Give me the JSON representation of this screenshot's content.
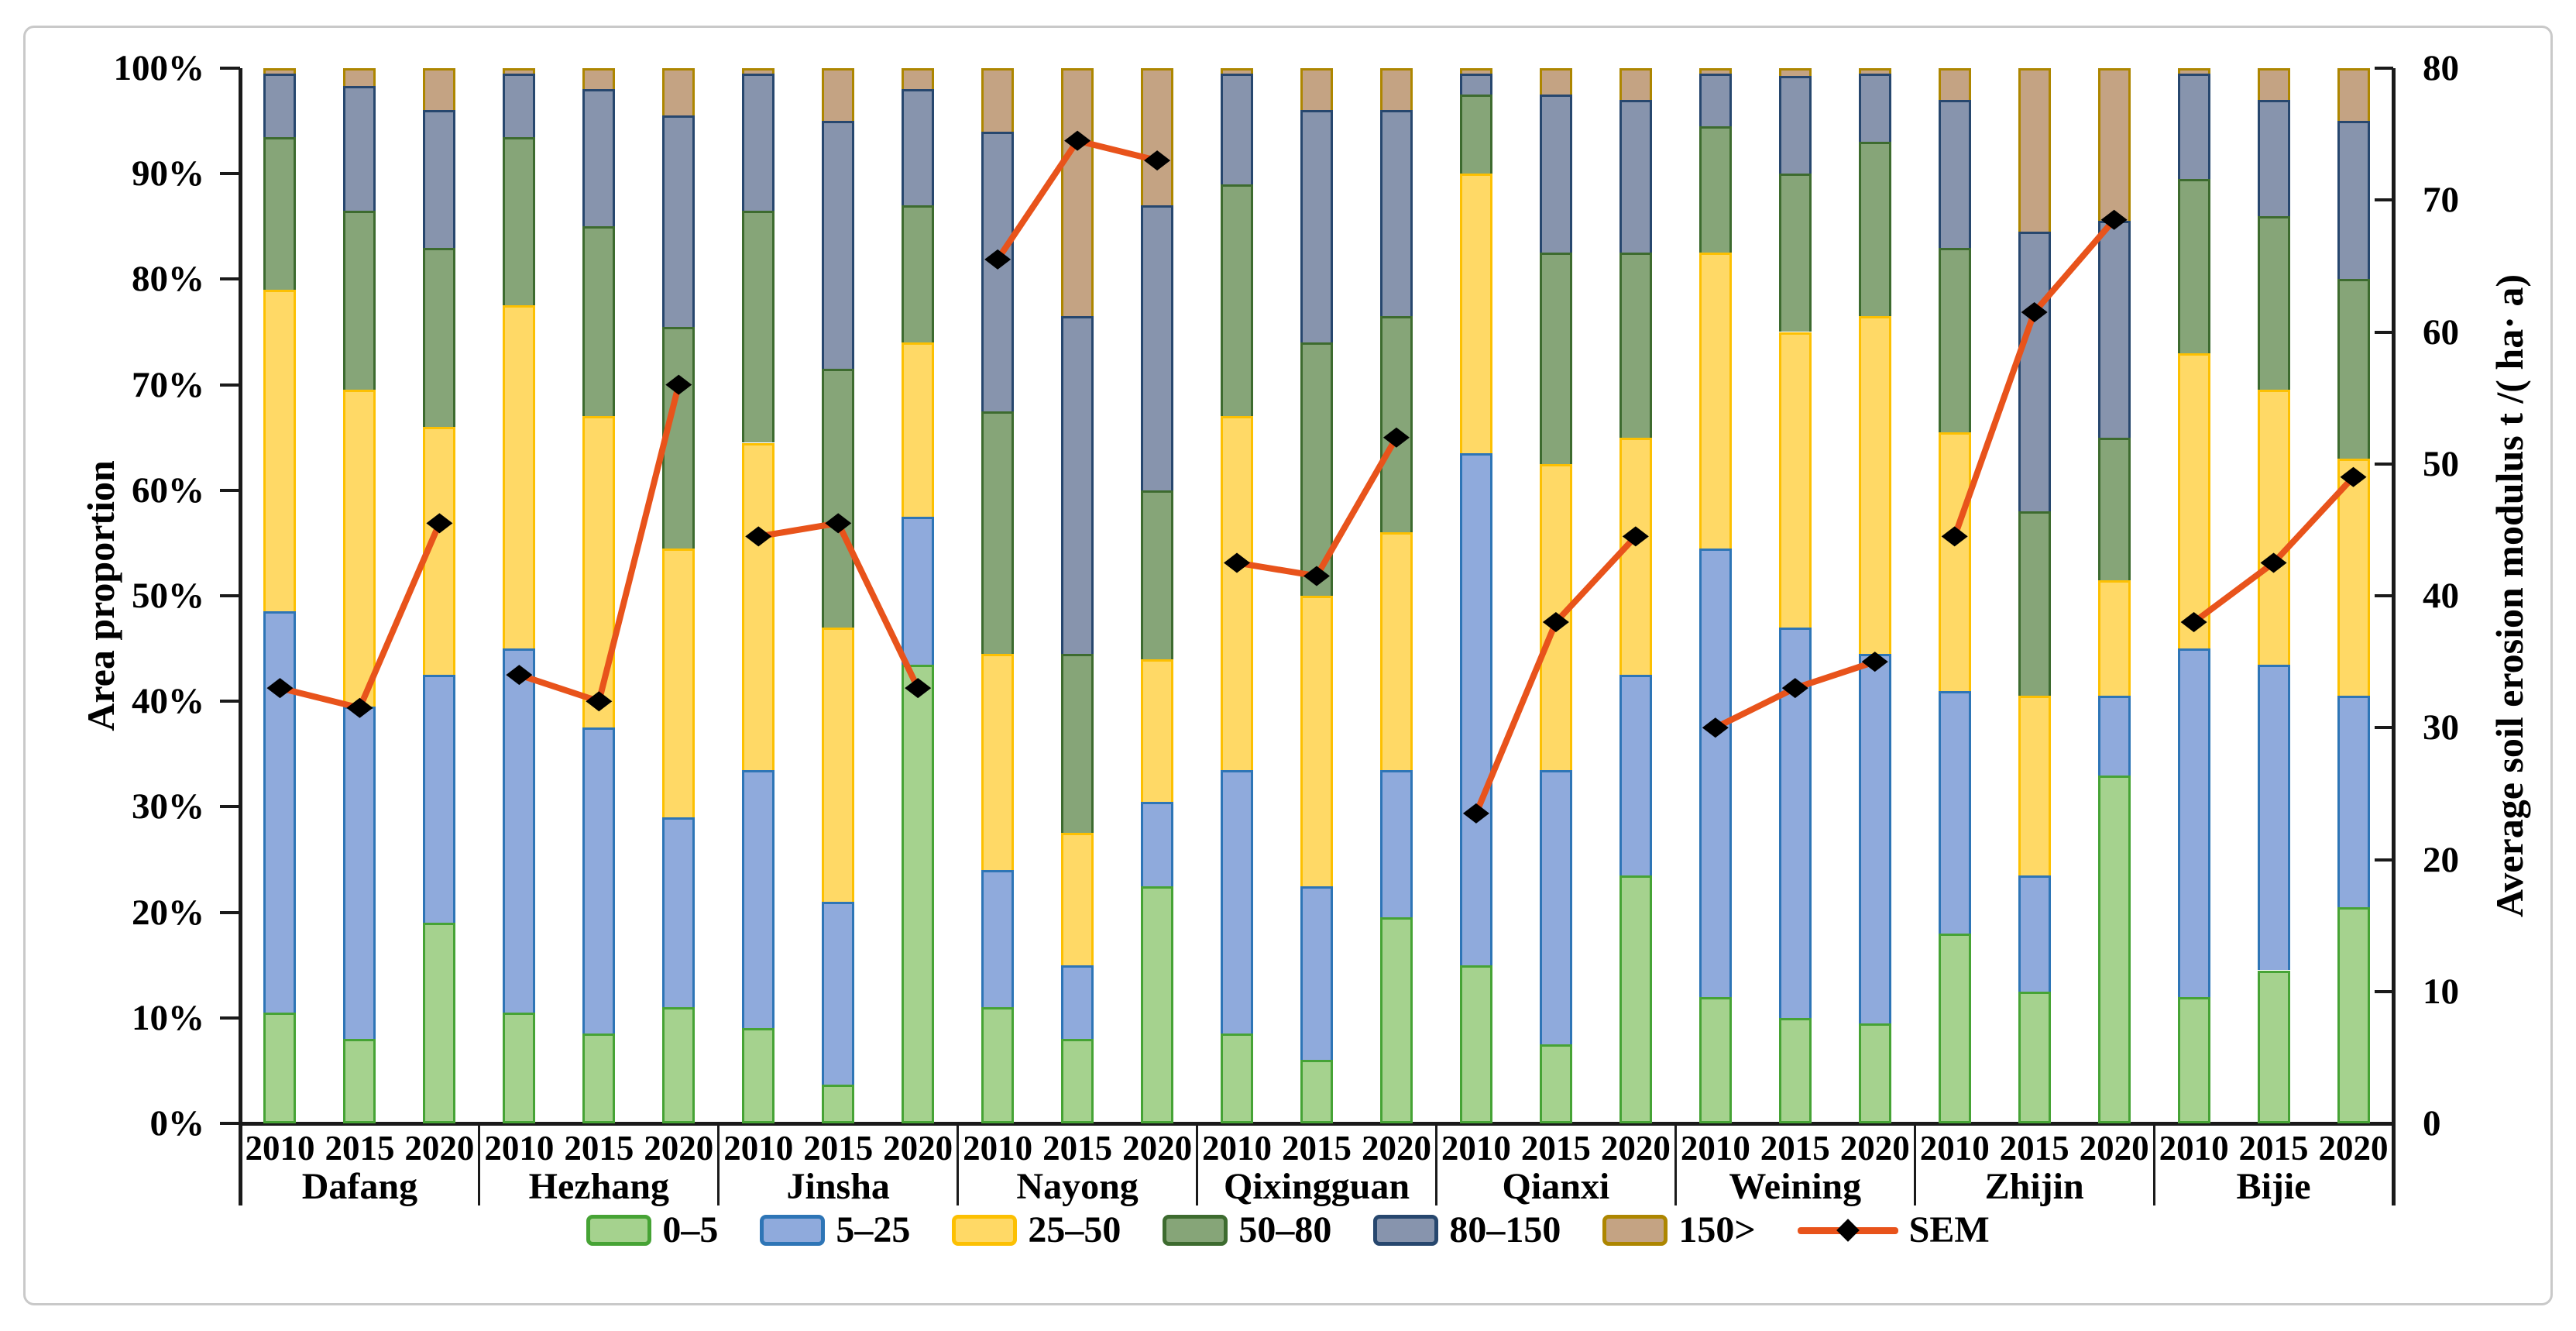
{
  "figure": {
    "background": "#ffffff",
    "frame_color": "#c9c9c9"
  },
  "chart_data": {
    "type": "bar",
    "variant": "100%-stacked-bars-with-line-overlay",
    "title": "",
    "grid": false,
    "legend_position": "bottom",
    "left_axis": {
      "title": "Area proportion",
      "min": 0,
      "max": 100,
      "tick_labels": [
        "0%",
        "10%",
        "20%",
        "30%",
        "40%",
        "50%",
        "60%",
        "70%",
        "80%",
        "90%",
        "100%"
      ]
    },
    "right_axis": {
      "title": "Average soil erosion modulus t /( ha· a)",
      "min": 0,
      "max": 80,
      "tick_labels": [
        "0",
        "10",
        "20",
        "30",
        "40",
        "50",
        "60",
        "70",
        "80"
      ]
    },
    "series_labels": [
      "0–5",
      "5–25",
      "25–50",
      "50–80",
      "80–150",
      "150>"
    ],
    "sem_label": "SEM",
    "years": [
      "2010",
      "2015",
      "2020"
    ],
    "colors": {
      "categories": [
        {
          "label": "0–5",
          "fill": "#a5d28e",
          "border": "#46a335"
        },
        {
          "label": "5–25",
          "fill": "#8faadc",
          "border": "#2e75b6"
        },
        {
          "label": "25–50",
          "fill": "#ffd966",
          "border": "#fcc002"
        },
        {
          "label": "50–80",
          "fill": "#86a578",
          "border": "#3d6b2f"
        },
        {
          "label": "80–150",
          "fill": "#8794ad",
          "border": "#27476e"
        },
        {
          "label": "150>",
          "fill": "#c4a383",
          "border": "#ad8600"
        }
      ],
      "sem_line": "#e8531b",
      "sem_marker": "#000000",
      "axis": "#1a1a1a"
    },
    "regions": [
      {
        "name": "Dafang",
        "bars": [
          {
            "year": "2010",
            "values": [
              10.5,
              38.0,
              30.5,
              14.5,
              6.0,
              0.5
            ],
            "sem": 33.0
          },
          {
            "year": "2015",
            "values": [
              8.0,
              31.5,
              30.0,
              17.0,
              11.8,
              1.7
            ],
            "sem": 31.5
          },
          {
            "year": "2020",
            "values": [
              19.0,
              23.5,
              23.5,
              17.0,
              13.0,
              4.0
            ],
            "sem": 45.5
          }
        ]
      },
      {
        "name": "Hezhang",
        "bars": [
          {
            "year": "2010",
            "values": [
              10.5,
              34.5,
              32.5,
              16.0,
              6.0,
              0.5
            ],
            "sem": 34.0
          },
          {
            "year": "2015",
            "values": [
              8.5,
              29.0,
              29.5,
              18.0,
              13.0,
              2.0
            ],
            "sem": 32.0
          },
          {
            "year": "2020",
            "values": [
              11.0,
              18.0,
              25.5,
              21.0,
              20.0,
              4.5
            ],
            "sem": 56.0
          }
        ]
      },
      {
        "name": "Jinsha",
        "bars": [
          {
            "year": "2010",
            "values": [
              9.0,
              24.5,
              31.0,
              22.0,
              13.0,
              0.5
            ],
            "sem": 44.5
          },
          {
            "year": "2015",
            "values": [
              3.7,
              17.3,
              26.0,
              24.5,
              23.5,
              5.0
            ],
            "sem": 45.5
          },
          {
            "year": "2020",
            "values": [
              43.5,
              14.0,
              16.5,
              13.0,
              11.0,
              2.0
            ],
            "sem": 33.0
          }
        ]
      },
      {
        "name": "Nayong",
        "bars": [
          {
            "year": "2010",
            "values": [
              11.0,
              13.0,
              20.5,
              23.0,
              26.5,
              6.0
            ],
            "sem": 65.5
          },
          {
            "year": "2015",
            "values": [
              8.0,
              7.0,
              12.5,
              17.0,
              32.0,
              23.5
            ],
            "sem": 74.5
          },
          {
            "year": "2020",
            "values": [
              22.5,
              8.0,
              13.5,
              16.0,
              27.0,
              13.0
            ],
            "sem": 73.0
          }
        ]
      },
      {
        "name": "Qixingguan",
        "bars": [
          {
            "year": "2010",
            "values": [
              8.5,
              25.0,
              33.5,
              22.0,
              10.5,
              0.5
            ],
            "sem": 42.5
          },
          {
            "year": "2015",
            "values": [
              6.0,
              16.5,
              27.5,
              24.0,
              22.0,
              4.0
            ],
            "sem": 41.5
          },
          {
            "year": "2020",
            "values": [
              19.5,
              14.0,
              22.5,
              20.5,
              19.5,
              4.0
            ],
            "sem": 52.0
          }
        ]
      },
      {
        "name": "Qianxi",
        "bars": [
          {
            "year": "2010",
            "values": [
              15.0,
              48.5,
              26.5,
              7.5,
              2.0,
              0.5
            ],
            "sem": 23.5
          },
          {
            "year": "2015",
            "values": [
              7.5,
              26.0,
              29.0,
              20.0,
              15.0,
              2.5
            ],
            "sem": 38.0
          },
          {
            "year": "2020",
            "values": [
              23.5,
              19.0,
              22.5,
              17.5,
              14.5,
              3.0
            ],
            "sem": 44.5
          }
        ]
      },
      {
        "name": "Weining",
        "bars": [
          {
            "year": "2010",
            "values": [
              12.0,
              42.5,
              28.0,
              12.0,
              5.0,
              0.5
            ],
            "sem": 30.0
          },
          {
            "year": "2015",
            "values": [
              10.0,
              37.0,
              28.0,
              15.0,
              9.3,
              0.7
            ],
            "sem": 33.0
          },
          {
            "year": "2020",
            "values": [
              9.5,
              35.0,
              32.0,
              16.5,
              6.5,
              0.5
            ],
            "sem": 35.0
          }
        ]
      },
      {
        "name": "Zhijin",
        "bars": [
          {
            "year": "2010",
            "values": [
              18.0,
              23.0,
              24.5,
              17.5,
              14.0,
              3.0
            ],
            "sem": 44.5
          },
          {
            "year": "2015",
            "values": [
              12.5,
              11.0,
              17.0,
              17.5,
              26.5,
              15.5
            ],
            "sem": 61.5
          },
          {
            "year": "2020",
            "values": [
              33.0,
              7.5,
              11.0,
              13.5,
              20.5,
              14.5
            ],
            "sem": 68.5
          }
        ]
      },
      {
        "name": "Bijie",
        "bars": [
          {
            "year": "2010",
            "values": [
              12.0,
              33.0,
              28.0,
              16.5,
              10.0,
              0.5
            ],
            "sem": 38.0
          },
          {
            "year": "2015",
            "values": [
              14.5,
              29.0,
              26.0,
              16.5,
              11.0,
              3.0
            ],
            "sem": 42.5
          },
          {
            "year": "2020",
            "values": [
              20.5,
              20.0,
              22.5,
              17.0,
              15.0,
              5.0
            ],
            "sem": 49.0
          }
        ]
      }
    ]
  }
}
